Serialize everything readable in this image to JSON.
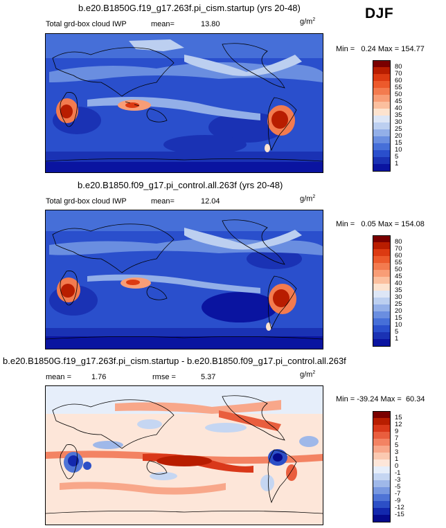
{
  "season_label": "DJF",
  "panels": [
    {
      "title": "b.e20.B1850G.f19_g17.263f.pi_cism.startup (yrs 20-48)",
      "variable": "Total grd-box cloud IWP",
      "mean_label": "mean=",
      "mean_value": "13.80",
      "units_base": "g/m",
      "units_exp": "2",
      "min_label": "Min =",
      "min_value": "0.24",
      "max_label": "Max =",
      "max_value": "154.77",
      "colorbar": {
        "labels": [
          "80",
          "70",
          "60",
          "55",
          "50",
          "45",
          "40",
          "35",
          "30",
          "25",
          "20",
          "15",
          "10",
          "5",
          "1"
        ],
        "colors": [
          "#7a0000",
          "#b81d00",
          "#dc3a12",
          "#ec5a2c",
          "#f37b4f",
          "#f89d76",
          "#fbbf9e",
          "#fde3cf",
          "#dde6f6",
          "#bccff0",
          "#93afe8",
          "#6a8ee0",
          "#466fd8",
          "#2a4fcc",
          "#1a32b4",
          "#0a14a0"
        ]
      }
    },
    {
      "title": "b.e20.B1850.f09_g17.pi_control.all.263f (yrs 20-48)",
      "variable": "Total grd-box cloud IWP",
      "mean_label": "mean=",
      "mean_value": "12.04",
      "units_base": "g/m",
      "units_exp": "2",
      "min_label": "Min =",
      "min_value": "0.05",
      "max_label": "Max =",
      "max_value": "154.08",
      "colorbar": {
        "labels": [
          "80",
          "70",
          "60",
          "55",
          "50",
          "45",
          "40",
          "35",
          "30",
          "25",
          "20",
          "15",
          "10",
          "5",
          "1"
        ],
        "colors": [
          "#7a0000",
          "#b81d00",
          "#dc3a12",
          "#ec5a2c",
          "#f37b4f",
          "#f89d76",
          "#fbbf9e",
          "#fde3cf",
          "#dde6f6",
          "#bccff0",
          "#93afe8",
          "#6a8ee0",
          "#466fd8",
          "#2a4fcc",
          "#1a32b4",
          "#0a14a0"
        ]
      }
    },
    {
      "title": "b.e20.B1850G.f19_g17.263f.pi_cism.startup - b.e20.B1850.f09_g17.pi_control.all.263f",
      "mean_label": "mean =",
      "mean_value": "1.76",
      "rmse_label": "rmse =",
      "rmse_value": "5.37",
      "units_base": "g/m",
      "units_exp": "2",
      "min_label": "Min =",
      "min_value": "-39.24",
      "max_label": "Max =",
      "max_value": "60.34",
      "colorbar": {
        "labels": [
          "15",
          "12",
          "9",
          "7",
          "5",
          "3",
          "1",
          "0",
          "-1",
          "-3",
          "-5",
          "-7",
          "-9",
          "-12",
          "-15"
        ],
        "colors": [
          "#7a0000",
          "#b81d00",
          "#d9381a",
          "#e95e3e",
          "#f38363",
          "#f8a78a",
          "#fbc9b1",
          "#fde6d9",
          "#e6eefa",
          "#c5d6f2",
          "#9fb8e9",
          "#7898e0",
          "#4f74d6",
          "#2c4fc6",
          "#1328ad",
          "#050a8c"
        ]
      }
    }
  ]
}
